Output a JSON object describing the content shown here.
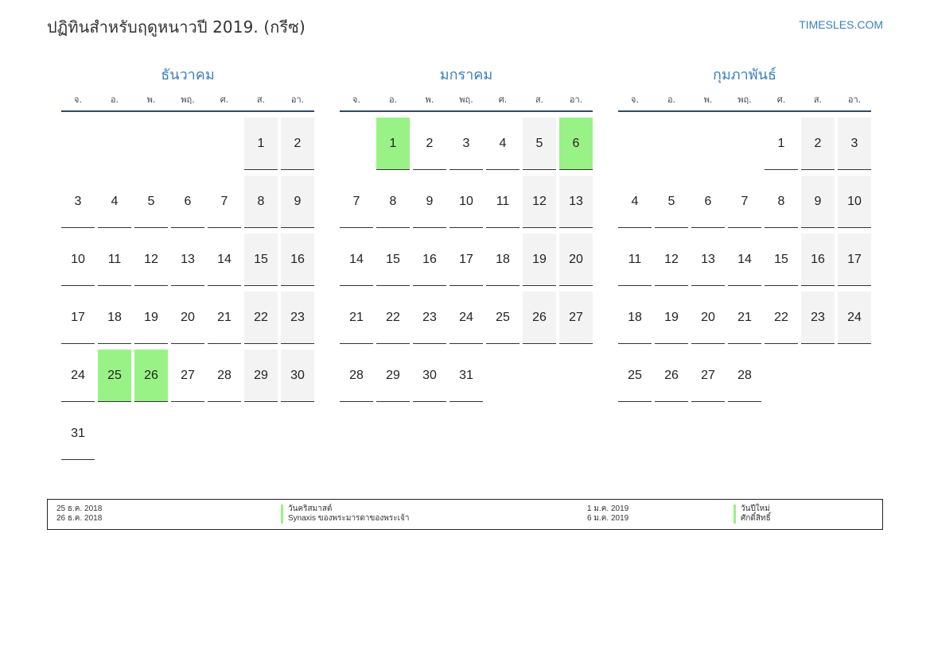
{
  "title": "ปฏิทินสำหรับฤดูหนาวปี 2019. (กรีซ)",
  "brand": "TIMESLES.COM",
  "weekdays": [
    "จ.",
    "อ.",
    "พ.",
    "พฤ.",
    "ศ.",
    "ส.",
    "อา."
  ],
  "colors": {
    "accent": "#3a7fc0",
    "holiday": "#99f285",
    "weekend": "#f3f3f3",
    "rule": "#2d4a6b"
  },
  "months": [
    {
      "name": "ธันวาคม",
      "weeks": [
        [
          {
            "d": ""
          },
          {
            "d": ""
          },
          {
            "d": ""
          },
          {
            "d": ""
          },
          {
            "d": ""
          },
          {
            "d": "1",
            "t": "we"
          },
          {
            "d": "2",
            "t": "we"
          }
        ],
        [
          {
            "d": "3"
          },
          {
            "d": "4"
          },
          {
            "d": "5"
          },
          {
            "d": "6"
          },
          {
            "d": "7"
          },
          {
            "d": "8",
            "t": "we"
          },
          {
            "d": "9",
            "t": "we"
          }
        ],
        [
          {
            "d": "10"
          },
          {
            "d": "11"
          },
          {
            "d": "12"
          },
          {
            "d": "13"
          },
          {
            "d": "14"
          },
          {
            "d": "15",
            "t": "we"
          },
          {
            "d": "16",
            "t": "we"
          }
        ],
        [
          {
            "d": "17"
          },
          {
            "d": "18"
          },
          {
            "d": "19"
          },
          {
            "d": "20"
          },
          {
            "d": "21"
          },
          {
            "d": "22",
            "t": "we"
          },
          {
            "d": "23",
            "t": "we"
          }
        ],
        [
          {
            "d": "24"
          },
          {
            "d": "25",
            "t": "hol"
          },
          {
            "d": "26",
            "t": "hol"
          },
          {
            "d": "27"
          },
          {
            "d": "28"
          },
          {
            "d": "29",
            "t": "we"
          },
          {
            "d": "30",
            "t": "we"
          }
        ],
        [
          {
            "d": "31"
          },
          {
            "d": ""
          },
          {
            "d": ""
          },
          {
            "d": ""
          },
          {
            "d": ""
          },
          {
            "d": ""
          },
          {
            "d": ""
          }
        ]
      ]
    },
    {
      "name": "มกราคม",
      "weeks": [
        [
          {
            "d": ""
          },
          {
            "d": "1",
            "t": "hol"
          },
          {
            "d": "2"
          },
          {
            "d": "3"
          },
          {
            "d": "4"
          },
          {
            "d": "5",
            "t": "we"
          },
          {
            "d": "6",
            "t": "hol"
          }
        ],
        [
          {
            "d": "7"
          },
          {
            "d": "8"
          },
          {
            "d": "9"
          },
          {
            "d": "10"
          },
          {
            "d": "11"
          },
          {
            "d": "12",
            "t": "we"
          },
          {
            "d": "13",
            "t": "we"
          }
        ],
        [
          {
            "d": "14"
          },
          {
            "d": "15"
          },
          {
            "d": "16"
          },
          {
            "d": "17"
          },
          {
            "d": "18"
          },
          {
            "d": "19",
            "t": "we"
          },
          {
            "d": "20",
            "t": "we"
          }
        ],
        [
          {
            "d": "21"
          },
          {
            "d": "22"
          },
          {
            "d": "23"
          },
          {
            "d": "24"
          },
          {
            "d": "25"
          },
          {
            "d": "26",
            "t": "we"
          },
          {
            "d": "27",
            "t": "we"
          }
        ],
        [
          {
            "d": "28"
          },
          {
            "d": "29"
          },
          {
            "d": "30"
          },
          {
            "d": "31"
          },
          {
            "d": ""
          },
          {
            "d": ""
          },
          {
            "d": ""
          }
        ]
      ]
    },
    {
      "name": "กุมภาพันธ์",
      "weeks": [
        [
          {
            "d": ""
          },
          {
            "d": ""
          },
          {
            "d": ""
          },
          {
            "d": ""
          },
          {
            "d": "1"
          },
          {
            "d": "2",
            "t": "we"
          },
          {
            "d": "3",
            "t": "we"
          }
        ],
        [
          {
            "d": "4"
          },
          {
            "d": "5"
          },
          {
            "d": "6"
          },
          {
            "d": "7"
          },
          {
            "d": "8"
          },
          {
            "d": "9",
            "t": "we"
          },
          {
            "d": "10",
            "t": "we"
          }
        ],
        [
          {
            "d": "11"
          },
          {
            "d": "12"
          },
          {
            "d": "13"
          },
          {
            "d": "14"
          },
          {
            "d": "15"
          },
          {
            "d": "16",
            "t": "we"
          },
          {
            "d": "17",
            "t": "we"
          }
        ],
        [
          {
            "d": "18"
          },
          {
            "d": "19"
          },
          {
            "d": "20"
          },
          {
            "d": "21"
          },
          {
            "d": "22"
          },
          {
            "d": "23",
            "t": "we"
          },
          {
            "d": "24",
            "t": "we"
          }
        ],
        [
          {
            "d": "25"
          },
          {
            "d": "26"
          },
          {
            "d": "27"
          },
          {
            "d": "28"
          },
          {
            "d": ""
          },
          {
            "d": ""
          },
          {
            "d": ""
          }
        ]
      ]
    }
  ],
  "holidays": [
    {
      "date": "25 ธ.ค. 2018",
      "name": "วันคริสมาสต์"
    },
    {
      "date": "26 ธ.ค. 2018",
      "name": "Synaxis ของพระมารดาของพระเจ้า"
    },
    {
      "date": "1 ม.ค. 2019",
      "name": "วันปีใหม่"
    },
    {
      "date": "6 ม.ค. 2019",
      "name": "ศักดิ์สิทธิ์"
    }
  ]
}
